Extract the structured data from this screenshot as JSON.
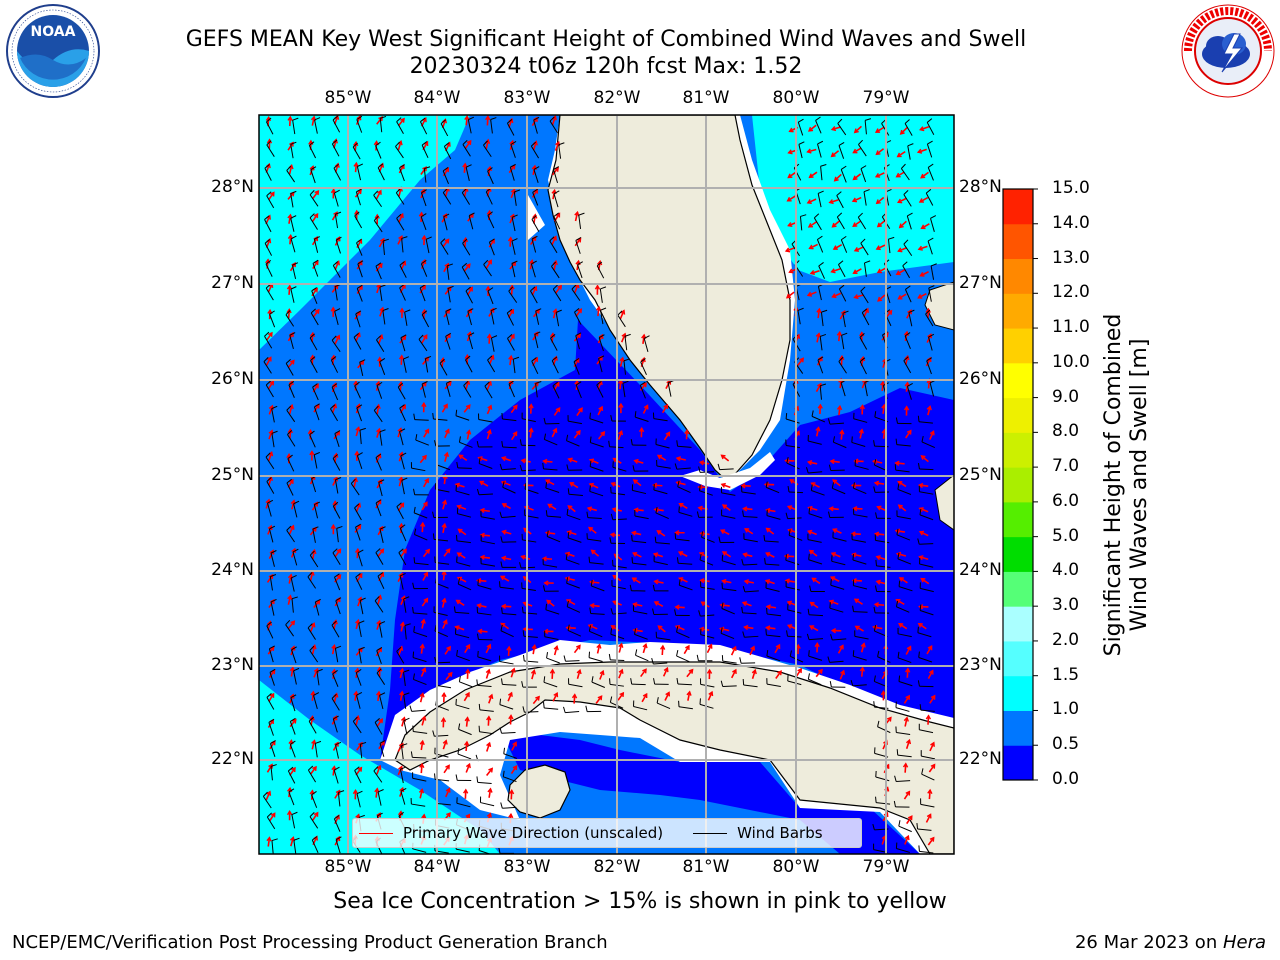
{
  "header": {
    "title_line1": "GEFS MEAN Key West Significant Height of Combined Wind Waves and Swell",
    "title_line2": "20230324 t06z 120h fcst   Max: 1.52"
  },
  "logos": {
    "left": {
      "name": "NOAA",
      "ring_text": "NATIONAL OCEANIC AND ATMOSPHERIC ADMINISTRATION",
      "bottom_text": "U.S. DEPARTMENT OF COMMERCE"
    },
    "right": {
      "ring_text": "NATIONAL WEATHER SERVICE"
    }
  },
  "map": {
    "lon_labels": [
      "85°W",
      "84°W",
      "83°W",
      "82°W",
      "81°W",
      "80°W",
      "79°W"
    ],
    "lat_labels": [
      "28°N",
      "27°N",
      "26°N",
      "25°N",
      "24°N",
      "23°N",
      "22°N"
    ],
    "legend": {
      "wave_label": "Primary Wave Direction (unscaled)",
      "wind_label": "Wind Barbs",
      "wave_color": "#ff0000",
      "wind_color": "#000000"
    },
    "colors": {
      "land": "#eeecdc",
      "deep_blue": "#0000ff",
      "mid_blue": "#0077ff",
      "cyan": "#00ffff"
    }
  },
  "colorbar": {
    "label_line1": "Significant Height of Combined",
    "label_line2": "Wind Waves and Swell [m]",
    "ticks": [
      "15.0",
      "14.0",
      "13.0",
      "12.0",
      "11.0",
      "10.0",
      "9.0",
      "8.0",
      "7.0",
      "6.0",
      "5.0",
      "4.0",
      "3.0",
      "2.0",
      "1.5",
      "1.0",
      "0.5",
      "0.0"
    ],
    "colors_bottom_to_top": [
      "#0000ff",
      "#0077ff",
      "#00ffff",
      "#55ffff",
      "#aaffff",
      "#55ff77",
      "#00dd00",
      "#55ee00",
      "#aaee00",
      "#ccf000",
      "#eef000",
      "#ffff00",
      "#ffd000",
      "#ffaa00",
      "#ff8800",
      "#ff5500",
      "#ff2200"
    ]
  },
  "footer": {
    "note": "Sea Ice Concentration > 15% is shown in pink to yellow",
    "credit_left": "NCEP/EMC/Verification Post Processing Product Generation Branch",
    "credit_right_prefix": "26 Mar 2023 on ",
    "credit_right_host": "Hera"
  }
}
